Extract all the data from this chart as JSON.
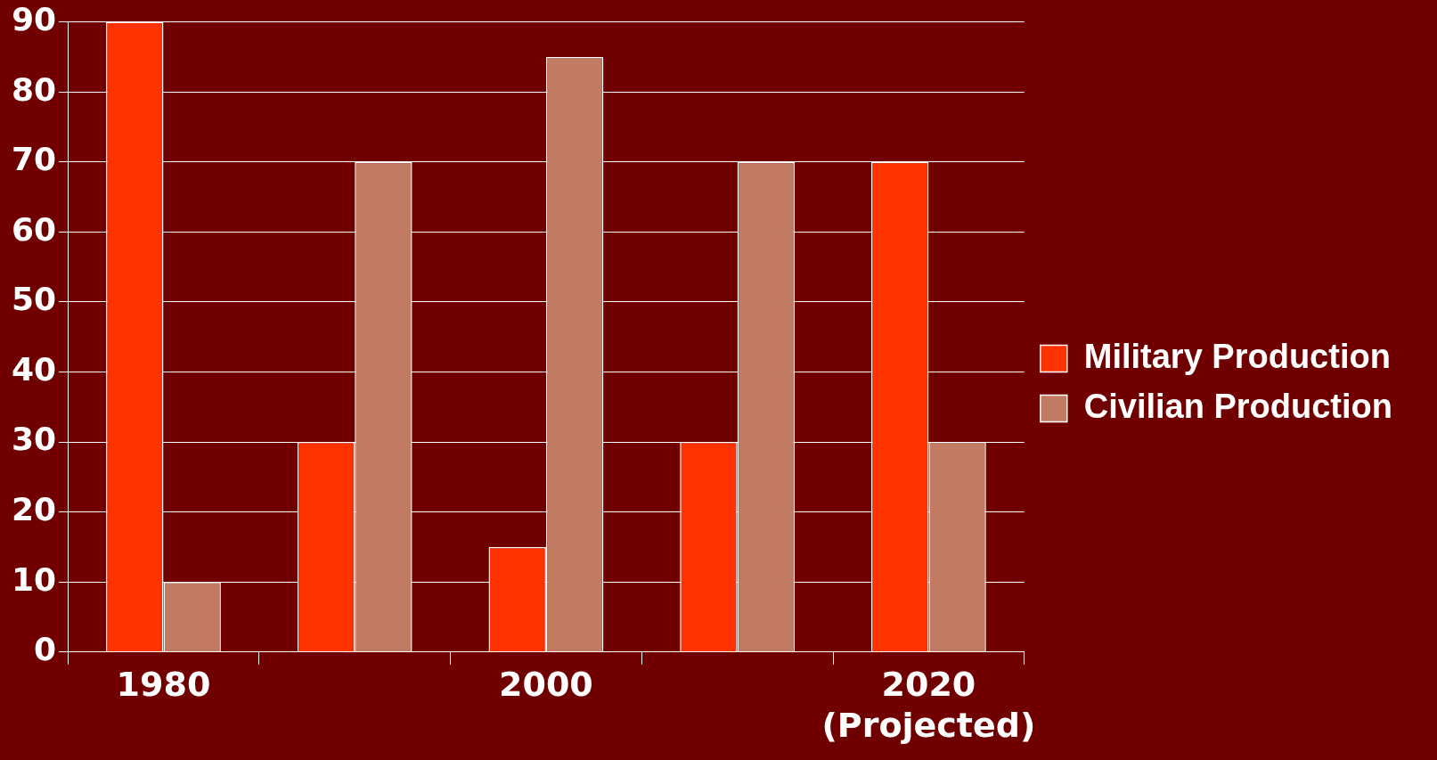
{
  "chart_data": {
    "type": "bar",
    "categories": [
      "1980",
      null,
      "2000",
      null,
      "2020\n(Projected)"
    ],
    "series": [
      {
        "name": "Military Production",
        "color": "#ff3300",
        "values": [
          90,
          30,
          15,
          30,
          70
        ]
      },
      {
        "name": "Civilian Production",
        "color": "#c07b62",
        "values": [
          10,
          70,
          85,
          70,
          30
        ]
      }
    ],
    "ylim": [
      0,
      90
    ],
    "yticks": [
      0,
      10,
      20,
      30,
      40,
      50,
      60,
      70,
      80,
      90
    ],
    "grid": "y",
    "legend": "right"
  }
}
